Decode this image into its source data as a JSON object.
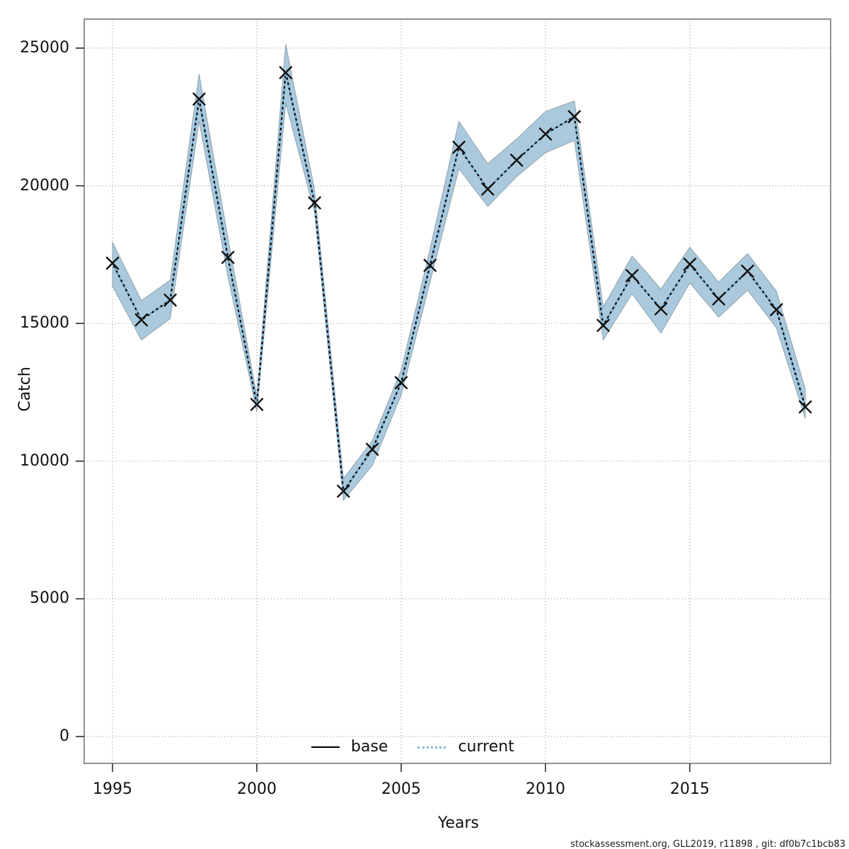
{
  "axes": {
    "x_label": "Years",
    "y_label": "Catch",
    "x_tick_years": [
      1995,
      2000,
      2005,
      2010,
      2015
    ],
    "x_tick_labels": [
      "1995",
      "2000",
      "2005",
      "2010",
      "2015"
    ],
    "y_tick_values": [
      0,
      5000,
      10000,
      15000,
      20000,
      25000
    ],
    "y_tick_labels": [
      "0",
      "5000",
      "10000",
      "15000",
      "20000",
      "25000"
    ]
  },
  "legend": {
    "base_label": "base",
    "current_label": "current"
  },
  "watermark": "stockassessment.org, GLL2019, r11898 , git: df0b7c1bcb83",
  "colors": {
    "band_fill": "#abc9dc",
    "band_edge": "#8fa2ae",
    "base_line": "#000000",
    "current_line": "#7fb6d9",
    "marker": "#111111",
    "grid": "#999999",
    "frame": "#6f6f6f",
    "tick": "#2b2b2b"
  },
  "chart_data": {
    "type": "line",
    "title": "",
    "xlabel": "Years",
    "ylabel": "Catch",
    "grid": true,
    "legend_position": "bottom-center",
    "xlim": [
      1994.0,
      2019.9
    ],
    "ylim": [
      -980,
      26050
    ],
    "x": [
      1995,
      1996,
      1997,
      1998,
      1999,
      2000,
      2001,
      2002,
      2003,
      2004,
      2005,
      2006,
      2007,
      2008,
      2009,
      2010,
      2011,
      2012,
      2013,
      2014,
      2015,
      2016,
      2017,
      2018,
      2019
    ],
    "series": [
      {
        "name": "base",
        "style": "solid",
        "color": "#000000",
        "marker": "x",
        "values": [
          17190,
          15130,
          15850,
          23150,
          17400,
          12060,
          24110,
          19380,
          8910,
          10430,
          12850,
          17110,
          21400,
          19880,
          20930,
          21880,
          22510,
          14930,
          16740,
          15530,
          17150,
          15890,
          16900,
          15500,
          11970
        ]
      },
      {
        "name": "current",
        "style": "dotted",
        "color": "#7fb6d9",
        "marker": "none",
        "values": [
          17190,
          15130,
          15850,
          23150,
          17400,
          12060,
          24110,
          19380,
          8910,
          10430,
          12850,
          17110,
          21400,
          19880,
          20930,
          21880,
          22510,
          14930,
          16740,
          15530,
          17150,
          15890,
          16900,
          15500,
          11970
        ]
      }
    ],
    "band": {
      "series": "current",
      "upper": [
        17950,
        15830,
        16570,
        24050,
        18100,
        12360,
        25150,
        19850,
        9360,
        10740,
        13300,
        17700,
        22340,
        20800,
        21700,
        22700,
        23080,
        15600,
        17450,
        16250,
        17770,
        16500,
        17540,
        16170,
        12620
      ],
      "lower": [
        16350,
        14400,
        15180,
        22350,
        16700,
        11800,
        23000,
        19050,
        8580,
        9840,
        12400,
        16500,
        20620,
        19250,
        20330,
        21200,
        21650,
        14400,
        16080,
        14650,
        16470,
        15230,
        16210,
        14840,
        11550
      ]
    }
  }
}
